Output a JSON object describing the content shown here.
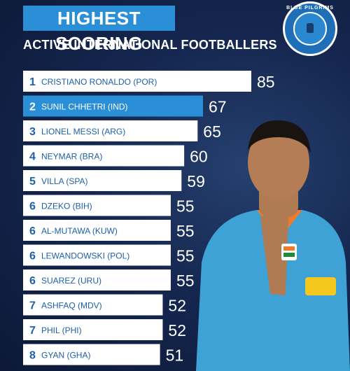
{
  "header": {
    "title": "HIGHEST SCORING",
    "subtitle": "ACTIVE INTERNATIONAL FOOTBALLERS"
  },
  "logo": {
    "ring_text": "BLUE PILGRIMS"
  },
  "colors": {
    "bar_default": "#ffffff",
    "bar_highlight": "#2a8fd6",
    "label_text": "#1f5fa8",
    "highlight_text": "#ffffff",
    "value_text": "#ffffff"
  },
  "chart_data": {
    "type": "bar",
    "orientation": "horizontal",
    "title": "HIGHEST SCORING",
    "subtitle": "ACTIVE INTERNATIONAL FOOTBALLERS",
    "highlight_index": 1,
    "bars": [
      {
        "rank": "1",
        "label": "CRISTIANO RONALDO (POR)",
        "value": 85
      },
      {
        "rank": "2",
        "label": "SUNIL CHHETRI (IND)",
        "value": 67
      },
      {
        "rank": "3",
        "label": "LIONEL MESSI (ARG)",
        "value": 65
      },
      {
        "rank": "4",
        "label": "NEYMAR (BRA)",
        "value": 60
      },
      {
        "rank": "5",
        "label": "VILLA (SPA)",
        "value": 59
      },
      {
        "rank": "6",
        "label": "DZEKO (BIH)",
        "value": 55
      },
      {
        "rank": "6",
        "label": "AL-MUTAWA (KUW)",
        "value": 55
      },
      {
        "rank": "6",
        "label": "LEWANDOWSKI (POL)",
        "value": 55
      },
      {
        "rank": "6",
        "label": "SUAREZ (URU)",
        "value": 55
      },
      {
        "rank": "7",
        "label": "ASHFAQ (MDV)",
        "value": 52
      },
      {
        "rank": "7",
        "label": "PHIL (PHI)",
        "value": 52
      },
      {
        "rank": "8",
        "label": "GYAN (GHA)",
        "value": 51
      }
    ]
  }
}
